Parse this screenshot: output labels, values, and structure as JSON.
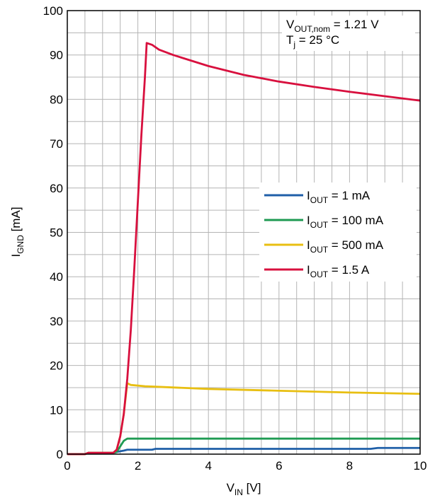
{
  "chart_data": {
    "type": "line",
    "xlabel": {
      "main": "V",
      "sub": "IN",
      "unit": " [V]"
    },
    "ylabel": {
      "main": "I",
      "sub": "GND",
      "unit": " [mA]"
    },
    "xlim": [
      0,
      10
    ],
    "ylim": [
      0,
      100
    ],
    "xticks": [
      0,
      2,
      4,
      6,
      8,
      10
    ],
    "yticks": [
      0,
      10,
      20,
      30,
      40,
      50,
      60,
      70,
      80,
      90,
      100
    ],
    "grid": true,
    "legend_position": "right-middle",
    "annotations": [
      {
        "main": "V",
        "sub": "OUT,nom",
        "rest": " = 1.21 V"
      },
      {
        "main": "T",
        "sub": "j",
        "rest": " = 25 °C"
      }
    ],
    "series": [
      {
        "name": {
          "main": "I",
          "sub": "OUT",
          "rest": " = 1 mA"
        },
        "color": "#1f5fa8",
        "x": [
          0,
          0.5,
          0.6,
          1.3,
          1.4,
          1.6,
          1.7,
          2.4,
          2.5,
          8.6,
          8.8,
          10
        ],
        "y": [
          0,
          0,
          0.3,
          0.3,
          0.5,
          0.8,
          1.0,
          1.0,
          1.2,
          1.2,
          1.4,
          1.4
        ]
      },
      {
        "name": {
          "main": "I",
          "sub": "OUT",
          "rest": " = 100 mA"
        },
        "color": "#1e9a52",
        "x": [
          0,
          0.5,
          0.6,
          1.3,
          1.4,
          1.6,
          1.7,
          10
        ],
        "y": [
          0,
          0,
          0.3,
          0.3,
          0.5,
          3.0,
          3.5,
          3.5
        ]
      },
      {
        "name": {
          "main": "I",
          "sub": "OUT",
          "rest": " = 500 mA"
        },
        "color": "#e8bf12",
        "x": [
          0,
          0.5,
          0.6,
          1.3,
          1.4,
          1.5,
          1.6,
          1.7,
          1.8,
          2.2,
          2.8,
          4.0,
          6.0,
          8.0,
          10
        ],
        "y": [
          0,
          0,
          0.3,
          0.3,
          1.0,
          4.0,
          9.0,
          16.0,
          15.6,
          15.3,
          15.1,
          14.7,
          14.3,
          13.9,
          13.6
        ]
      },
      {
        "name": {
          "main": "I",
          "sub": "OUT",
          "rest": " = 1.5 A"
        },
        "color": "#d8103e",
        "x": [
          0,
          0.5,
          0.6,
          1.3,
          1.4,
          1.5,
          1.6,
          1.7,
          1.8,
          1.9,
          2.0,
          2.1,
          2.2,
          2.25,
          2.4,
          2.6,
          3.0,
          4.0,
          5.0,
          6.0,
          7.0,
          8.0,
          9.0,
          10
        ],
        "y": [
          0,
          0,
          0.3,
          0.3,
          1.0,
          4.0,
          9.0,
          17.0,
          28.0,
          42.0,
          57.0,
          72.0,
          85.0,
          92.7,
          92.3,
          91.2,
          90.0,
          87.5,
          85.5,
          84.0,
          82.8,
          81.7,
          80.7,
          79.7
        ]
      }
    ]
  }
}
